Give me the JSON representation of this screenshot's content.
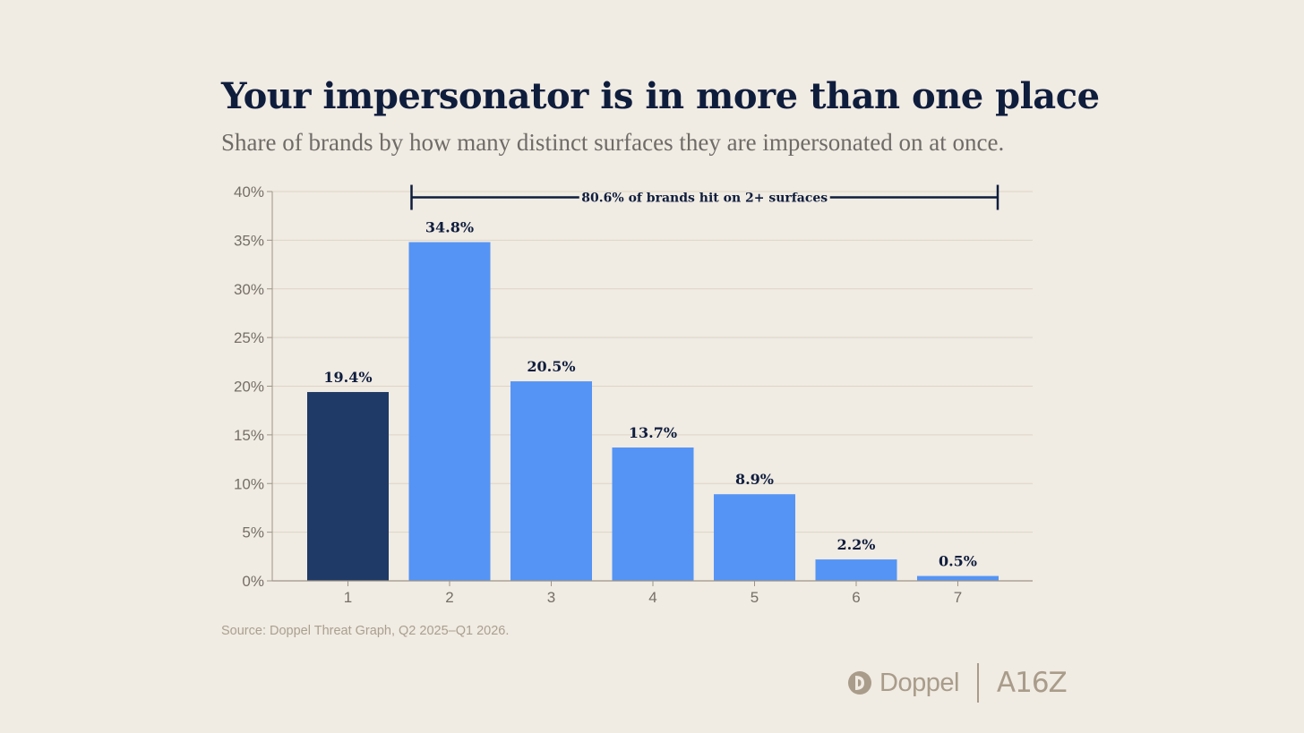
{
  "title": "Your impersonator is in more than one place",
  "subtitle": "Share of brands by how many distinct surfaces they are impersonated on at once.",
  "source": "Source: Doppel Threat Graph, Q2 2025–Q1 2026.",
  "logos": {
    "doppel": "Doppel",
    "a16z": "A16Z"
  },
  "colors": {
    "background": "#f0ebe3",
    "highlight_bar": "#1f3a66",
    "bar": "#5594f5",
    "text_dark": "#0f1d3d"
  },
  "chart_data": {
    "type": "bar",
    "categories": [
      "1",
      "2",
      "3",
      "4",
      "5",
      "6",
      "7"
    ],
    "values": [
      19.4,
      34.8,
      20.5,
      13.7,
      8.9,
      2.2,
      0.5
    ],
    "data_labels": [
      "19.4%",
      "34.8%",
      "20.5%",
      "13.7%",
      "8.9%",
      "2.2%",
      "0.5%"
    ],
    "highlight_index": 0,
    "ylim": [
      0,
      40
    ],
    "yticks": [
      0,
      5,
      10,
      15,
      20,
      25,
      30,
      35,
      40
    ],
    "ytick_labels": [
      "0%",
      "5%",
      "10%",
      "15%",
      "20%",
      "25%",
      "30%",
      "35%",
      "40%"
    ],
    "grid": true,
    "annotation": {
      "text": "80.6% of brands hit on 2+ surfaces",
      "from_category": "2",
      "to_category": "7",
      "y": 39.4
    }
  }
}
